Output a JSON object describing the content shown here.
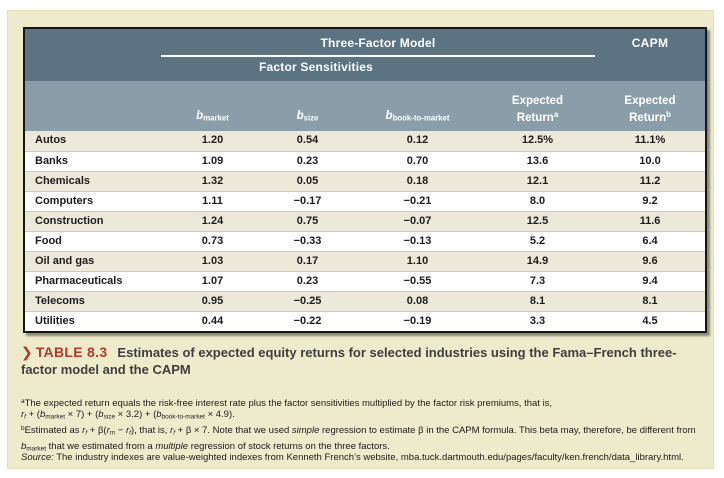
{
  "table": {
    "header": {
      "three_factor_label": "Three-Factor Model",
      "factor_sensitivities_label": "Factor Sensitivities",
      "capm_label": "CAPM"
    },
    "columns": {
      "b_market": [
        {
          "t": "b",
          "f": "i"
        },
        {
          "t": "market",
          "f": "sub"
        }
      ],
      "b_size": [
        {
          "t": "b",
          "f": "i"
        },
        {
          "t": "size",
          "f": "sub"
        }
      ],
      "b_book_to_market": [
        {
          "t": "b",
          "f": "i"
        },
        {
          "t": "book-to-market",
          "f": "sub"
        }
      ],
      "expected": "Expected",
      "return_a": [
        {
          "t": "Return"
        },
        {
          "t": "a",
          "f": "sup"
        }
      ],
      "return_b": [
        {
          "t": "Return"
        },
        {
          "t": "b",
          "f": "sup"
        }
      ]
    },
    "rows": [
      {
        "industry": "Autos",
        "b_market": "1.20",
        "b_size": "0.54",
        "b_btm": "0.12",
        "er_ff": "12.5%",
        "er_capm": "11.1%"
      },
      {
        "industry": "Banks",
        "b_market": "1.09",
        "b_size": "0.23",
        "b_btm": "0.70",
        "er_ff": "13.6",
        "er_capm": "10.0"
      },
      {
        "industry": "Chemicals",
        "b_market": "1.32",
        "b_size": "0.05",
        "b_btm": "0.18",
        "er_ff": "12.1",
        "er_capm": "11.2"
      },
      {
        "industry": "Computers",
        "b_market": "1.11",
        "b_size": "−0.17",
        "b_btm": "−0.21",
        "er_ff": "8.0",
        "er_capm": "9.2"
      },
      {
        "industry": "Construction",
        "b_market": "1.24",
        "b_size": "0.75",
        "b_btm": "−0.07",
        "er_ff": "12.5",
        "er_capm": "11.6"
      },
      {
        "industry": "Food",
        "b_market": "0.73",
        "b_size": "−0.33",
        "b_btm": "−0.13",
        "er_ff": "5.2",
        "er_capm": "6.4"
      },
      {
        "industry": "Oil and gas",
        "b_market": "1.03",
        "b_size": "0.17",
        "b_btm": "1.10",
        "er_ff": "14.9",
        "er_capm": "9.6"
      },
      {
        "industry": "Pharmaceuticals",
        "b_market": "1.07",
        "b_size": "0.23",
        "b_btm": "−0.55",
        "er_ff": "7.3",
        "er_capm": "9.4"
      },
      {
        "industry": "Telecoms",
        "b_market": "0.95",
        "b_size": "−0.25",
        "b_btm": "0.08",
        "er_ff": "8.1",
        "er_capm": "8.1"
      },
      {
        "industry": "Utilities",
        "b_market": "0.44",
        "b_size": "−0.22",
        "b_btm": "−0.19",
        "er_ff": "3.3",
        "er_capm": "4.5"
      }
    ]
  },
  "caption": {
    "marker": "❯",
    "label": "TABLE 8.3",
    "text": "Estimates of expected equity returns for selected industries using the Fama–French three-factor model and the CAPM"
  },
  "footnotes": {
    "a": [
      {
        "t": "a",
        "f": "sup"
      },
      {
        "t": "The expected return equals the risk-free interest rate plus the factor sensitivities multiplied by the factor risk premiums, that is,"
      }
    ],
    "a_formula": [
      {
        "t": "r",
        "f": "i"
      },
      {
        "t": "f",
        "f": "isub"
      },
      {
        "t": " + ("
      },
      {
        "t": "b",
        "f": "i"
      },
      {
        "t": "market",
        "f": "sub"
      },
      {
        "t": " × 7) + ("
      },
      {
        "t": "b",
        "f": "i"
      },
      {
        "t": "size",
        "f": "sub"
      },
      {
        "t": " × 3.2) + ("
      },
      {
        "t": "b",
        "f": "i"
      },
      {
        "t": "book-to-market",
        "f": "sub"
      },
      {
        "t": " × 4.9)."
      }
    ],
    "b": [
      {
        "t": "b",
        "f": "sup"
      },
      {
        "t": "Estimated as "
      },
      {
        "t": "r",
        "f": "i"
      },
      {
        "t": "f",
        "f": "isub"
      },
      {
        "t": " + β("
      },
      {
        "t": "r",
        "f": "i"
      },
      {
        "t": "m",
        "f": "isub"
      },
      {
        "t": " − "
      },
      {
        "t": "r",
        "f": "i"
      },
      {
        "t": "f",
        "f": "isub"
      },
      {
        "t": "), that is, "
      },
      {
        "t": "r",
        "f": "i"
      },
      {
        "t": "f",
        "f": "isub"
      },
      {
        "t": " + β × 7. Note that we used "
      },
      {
        "t": "simple",
        "f": "i"
      },
      {
        "t": " regression to estimate β in the CAPM formula. This beta may, therefore, be different from "
      },
      {
        "t": "b",
        "f": "i"
      },
      {
        "t": "market",
        "f": "sub"
      },
      {
        "t": " that we estimated from a "
      },
      {
        "t": "multiple",
        "f": "i"
      },
      {
        "t": " regression of stock returns on the three factors."
      }
    ],
    "source": [
      {
        "t": "Source:",
        "f": "i"
      },
      {
        "t": " The industry indexes are value-weighted indexes from Kenneth French’s website, mba.tuck.dartmouth.edu/pages/faculty/ken.french/data_library.html."
      }
    ]
  },
  "colors": {
    "header_dark": "#5b7382",
    "header_light": "#8a9eaa",
    "row_alt": "#ece9db",
    "panel_background": "#eeebcc",
    "accent_red": "#b43a28"
  }
}
